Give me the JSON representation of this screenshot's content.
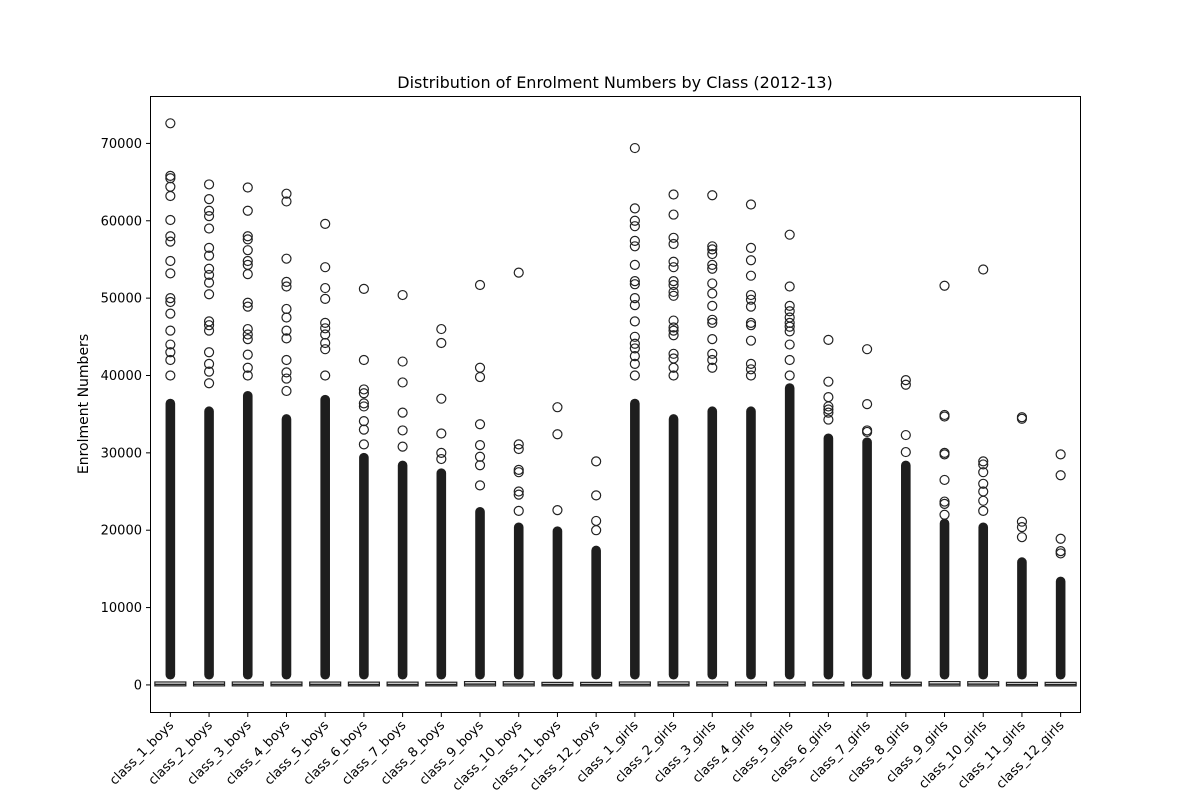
{
  "chart_data": {
    "type": "box",
    "title": "Distribution of Enrolment Numbers by Class (2012-13)",
    "xlabel": "",
    "ylabel": "Enrolment Numbers",
    "ylim": [
      -3500,
      76000
    ],
    "yticks": [
      0,
      10000,
      20000,
      30000,
      40000,
      50000,
      60000,
      70000
    ],
    "grid": false,
    "categories": [
      "class_1_boys",
      "class_2_boys",
      "class_3_boys",
      "class_4_boys",
      "class_5_boys",
      "class_6_boys",
      "class_7_boys",
      "class_8_boys",
      "class_9_boys",
      "class_10_boys",
      "class_11_boys",
      "class_12_boys",
      "class_1_girls",
      "class_2_girls",
      "class_3_girls",
      "class_4_girls",
      "class_5_girls",
      "class_6_girls",
      "class_7_girls",
      "class_8_girls",
      "class_9_girls",
      "class_10_girls",
      "class_11_girls",
      "class_12_girls"
    ],
    "series": [
      {
        "box": [
          0,
          5,
          70,
          250,
          300
        ],
        "outlier_range": [
          700,
          37000
        ],
        "outliers": [
          72600,
          65800,
          65500,
          64400,
          63200,
          60100,
          58000,
          57300,
          54800,
          53200,
          50000,
          49500,
          48000,
          45800,
          44000,
          43000,
          42000,
          40000
        ]
      },
      {
        "box": [
          0,
          5,
          80,
          260,
          320
        ],
        "outlier_range": [
          700,
          36000
        ],
        "outliers": [
          64700,
          62800,
          61300,
          60600,
          59000,
          56500,
          55500,
          53800,
          53000,
          52000,
          50500,
          47000,
          46500,
          45800,
          43000,
          41500,
          40500,
          39000
        ]
      },
      {
        "box": [
          0,
          5,
          75,
          250,
          310
        ],
        "outlier_range": [
          700,
          38000
        ],
        "outliers": [
          64300,
          61300,
          58000,
          57600,
          56200,
          54800,
          54300,
          53100,
          49400,
          48900,
          46000,
          45300,
          44700,
          42700,
          41000,
          40000
        ]
      },
      {
        "box": [
          0,
          5,
          70,
          240,
          300
        ],
        "outlier_range": [
          700,
          35000
        ],
        "outliers": [
          63500,
          62500,
          55100,
          52100,
          51500,
          48600,
          47500,
          45800,
          44800,
          42000,
          40400,
          39600,
          38000
        ]
      },
      {
        "box": [
          0,
          5,
          70,
          240,
          300
        ],
        "outlier_range": [
          700,
          37500
        ],
        "outliers": [
          59600,
          54000,
          51300,
          49900,
          46800,
          46100,
          45300,
          44200,
          43400,
          40000
        ]
      },
      {
        "box": [
          0,
          5,
          60,
          230,
          280
        ],
        "outlier_range": [
          700,
          30000
        ],
        "outliers": [
          51200,
          42000,
          38200,
          37700,
          36400,
          36000,
          34100,
          33000,
          31100
        ]
      },
      {
        "box": [
          0,
          5,
          60,
          230,
          280
        ],
        "outlier_range": [
          700,
          29000
        ],
        "outliers": [
          50400,
          41800,
          39100,
          35200,
          32900,
          30800
        ]
      },
      {
        "box": [
          0,
          5,
          60,
          220,
          280
        ],
        "outlier_range": [
          700,
          28000
        ],
        "outliers": [
          46000,
          44200,
          37000,
          32500,
          30000,
          29200
        ]
      },
      {
        "box": [
          0,
          5,
          110,
          300,
          400
        ],
        "outlier_range": [
          700,
          23000
        ],
        "outliers": [
          51700,
          41000,
          39800,
          33700,
          31000,
          29500,
          28400,
          25800
        ]
      },
      {
        "box": [
          0,
          5,
          100,
          290,
          380
        ],
        "outlier_range": [
          700,
          21000
        ],
        "outliers": [
          53300,
          31100,
          30500,
          27800,
          27500,
          25000,
          24600,
          22500
        ]
      },
      {
        "box": [
          0,
          5,
          50,
          200,
          240
        ],
        "outlier_range": [
          700,
          20500
        ],
        "outliers": [
          35900,
          32400,
          22600
        ]
      },
      {
        "box": [
          0,
          5,
          50,
          200,
          240
        ],
        "outlier_range": [
          700,
          18000
        ],
        "outliers": [
          28900,
          24500,
          21200,
          20000
        ]
      },
      {
        "box": [
          0,
          5,
          70,
          250,
          300
        ],
        "outlier_range": [
          700,
          37000
        ],
        "outliers": [
          69400,
          61600,
          60000,
          59300,
          57400,
          56700,
          54300,
          52200,
          51800,
          50000,
          49100,
          47000,
          45000,
          44100,
          43500,
          42500,
          41500,
          40000
        ]
      },
      {
        "box": [
          0,
          5,
          75,
          260,
          320
        ],
        "outlier_range": [
          700,
          35000
        ],
        "outliers": [
          63400,
          60800,
          57800,
          57000,
          54700,
          54000,
          52200,
          51700,
          50800,
          50300,
          47100,
          46200,
          45800,
          45200,
          42800,
          42200,
          41000,
          40000
        ]
      },
      {
        "box": [
          0,
          5,
          70,
          250,
          310
        ],
        "outlier_range": [
          700,
          36000
        ],
        "outliers": [
          63300,
          56700,
          56300,
          55700,
          54300,
          53800,
          51900,
          50600,
          49000,
          47200,
          46800,
          44700,
          42800,
          42000,
          41000
        ]
      },
      {
        "box": [
          0,
          5,
          65,
          240,
          300
        ],
        "outlier_range": [
          700,
          36000
        ],
        "outliers": [
          62100,
          56500,
          54900,
          52900,
          50400,
          49800,
          48900,
          46800,
          46500,
          44500,
          41500,
          40800,
          40000
        ]
      },
      {
        "box": [
          0,
          5,
          65,
          240,
          300
        ],
        "outlier_range": [
          700,
          39000
        ],
        "outliers": [
          58200,
          51500,
          49000,
          48300,
          47500,
          46800,
          46300,
          45700,
          44000,
          42000,
          40000
        ]
      },
      {
        "box": [
          0,
          5,
          60,
          230,
          280
        ],
        "outlier_range": [
          700,
          32500
        ],
        "outliers": [
          44600,
          39200,
          37200,
          36000,
          35600,
          35200,
          34300
        ]
      },
      {
        "box": [
          0,
          5,
          60,
          230,
          280
        ],
        "outlier_range": [
          700,
          32000
        ],
        "outliers": [
          43400,
          36300,
          32900,
          32700
        ]
      },
      {
        "box": [
          0,
          5,
          60,
          220,
          280
        ],
        "outlier_range": [
          700,
          29000
        ],
        "outliers": [
          39400,
          38800,
          32300,
          30100
        ]
      },
      {
        "box": [
          0,
          5,
          110,
          300,
          400
        ],
        "outlier_range": [
          700,
          21500
        ],
        "outliers": [
          51600,
          34900,
          34700,
          30000,
          29800,
          26500,
          23700,
          23400,
          22000
        ]
      },
      {
        "box": [
          0,
          5,
          100,
          290,
          380
        ],
        "outlier_range": [
          700,
          21000
        ],
        "outliers": [
          53700,
          28900,
          28500,
          27500,
          26000,
          25000,
          23800,
          22500
        ]
      },
      {
        "box": [
          0,
          5,
          50,
          200,
          240
        ],
        "outlier_range": [
          700,
          16500
        ],
        "outliers": [
          34600,
          34400,
          21100,
          20400,
          19100
        ]
      },
      {
        "box": [
          0,
          5,
          50,
          200,
          240
        ],
        "outlier_range": [
          700,
          14000
        ],
        "outliers": [
          29800,
          27100,
          18900,
          17300,
          17000
        ]
      }
    ]
  }
}
